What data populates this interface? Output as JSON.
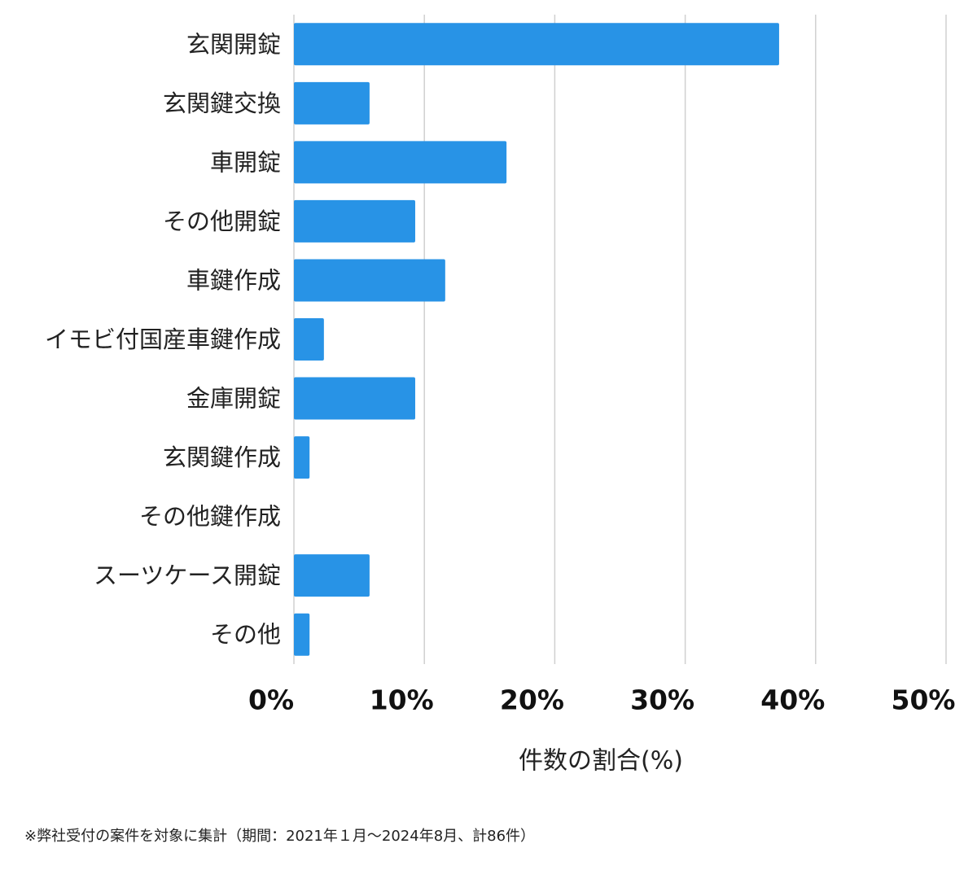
{
  "chart_data": {
    "type": "bar",
    "orientation": "horizontal",
    "categories": [
      "玄関開錠",
      "玄関鍵交換",
      "車開錠",
      "その他開錠",
      "車鍵作成",
      "イモビ付国産車鍵作成",
      "金庫開錠",
      "玄関鍵作成",
      "その他鍵作成",
      "スーツケース開錠",
      "その他"
    ],
    "values": [
      37.2,
      5.8,
      16.3,
      9.3,
      11.6,
      2.3,
      9.3,
      1.2,
      0,
      5.8,
      1.2
    ],
    "color": "#2893e6",
    "xlim": [
      0,
      50
    ],
    "xticks": [
      {
        "value": 0,
        "label": "0%"
      },
      {
        "value": 10,
        "label": "10%"
      },
      {
        "value": 20,
        "label": "20%"
      },
      {
        "value": 30,
        "label": "30%"
      },
      {
        "value": 40,
        "label": "40%"
      },
      {
        "value": 50,
        "label": "50%"
      }
    ],
    "grid": true,
    "x_label": "件数の割合(%)",
    "footnote": "※弊社受付の案件を対象に集計（期間：2021年１月〜2024年8月、計86件）"
  }
}
